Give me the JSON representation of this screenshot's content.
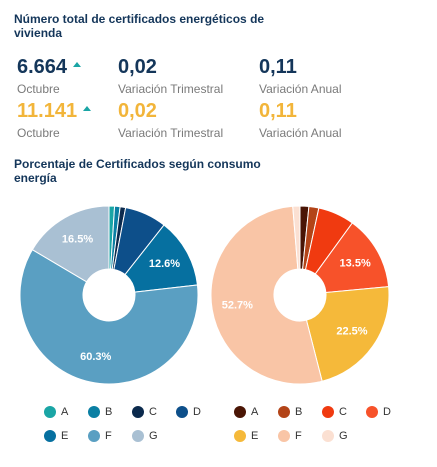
{
  "header": {
    "title": "Número total de certificados energéticos de vivienda"
  },
  "stats": {
    "row1": {
      "total_value": "6.664",
      "total_label": "Octubre",
      "trimestral_value": "0,02",
      "trimestral_label": "Variación Trimestral",
      "anual_value": "0,11",
      "anual_label": "Variación Anual"
    },
    "row2": {
      "total_value": "11.141",
      "total_label": "Octubre",
      "trimestral_value": "0,02",
      "trimestral_label": "Variación Trimestral",
      "anual_value": "0,11",
      "anual_label": "Variación Anual"
    },
    "trend_icon": "triangle-up-icon",
    "trend_color": "#1aa5a5",
    "accent_blue": "#14365a",
    "accent_gold": "#f2b53a"
  },
  "section2": {
    "title": "Porcentaje de Certificados según consumo energía"
  },
  "chart_data": [
    {
      "type": "pie",
      "donut": true,
      "categories": [
        "A",
        "B",
        "C",
        "D",
        "E",
        "F",
        "G"
      ],
      "values": [
        1.0,
        1.0,
        1.0,
        7.6,
        12.6,
        60.3,
        16.5
      ],
      "colors": [
        "#1aa5a5",
        "#0a7fa3",
        "#0b2a4d",
        "#0d4f8a",
        "#0670a0",
        "#5a9fc2",
        "#a9c0d3"
      ],
      "labels": [
        "",
        "",
        "",
        "",
        "12.6%",
        "60.3%",
        "16.5%"
      ],
      "legend": "bottom"
    },
    {
      "type": "pie",
      "donut": true,
      "categories": [
        "A",
        "B",
        "C",
        "D",
        "E",
        "F",
        "G"
      ],
      "values": [
        1.6,
        1.8,
        6.6,
        13.5,
        22.5,
        52.7,
        1.3
      ],
      "colors": [
        "#4a1505",
        "#b34418",
        "#f03a10",
        "#f7522a",
        "#f5b93a",
        "#f9c5a6",
        "#fbe0d2"
      ],
      "labels": [
        "",
        "",
        "",
        "13.5%",
        "22.5%",
        "52.7%",
        ""
      ],
      "legend": "bottom"
    }
  ]
}
